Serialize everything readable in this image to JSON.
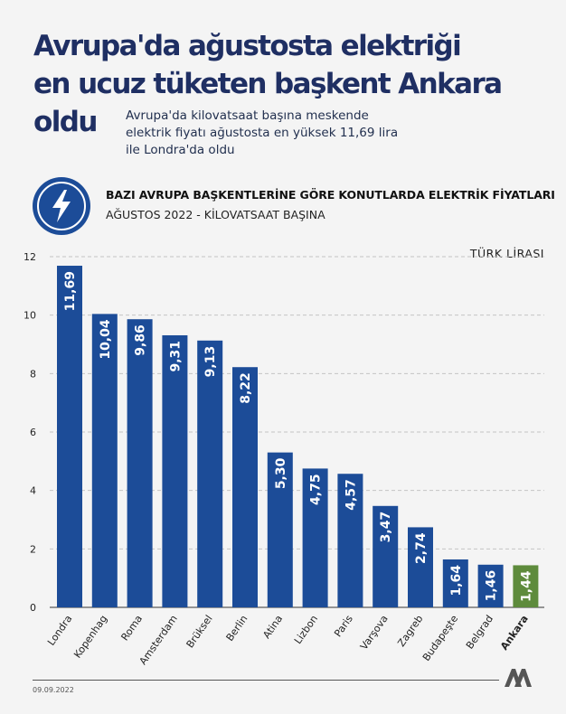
{
  "header": {
    "title_line1": "Avrupa'da ağustosta elektriği",
    "title_line2": "en ucuz tüketen başkent Ankara",
    "title_line3": "oldu",
    "subtitle_line1": "Avrupa'da kilovatsaat başına meskende",
    "subtitle_line2": "elektrik fiyatı ağustosta en yüksek 11,69 lira",
    "subtitle_line3": "ile Londra'da oldu"
  },
  "chart_heading": {
    "icon": "lightning-bolt-icon",
    "title": "BAZI AVRUPA BAŞKENTLERİNE GÖRE KONUTLARDA ELEKTRİK FİYATLARI",
    "subtitle": "AĞUSTOS 2022 - KİLOVATSAAT BAŞINA"
  },
  "chart_data": {
    "type": "bar",
    "unit_label": "TÜRK LİRASI",
    "categories": [
      "Londra",
      "Kopenhag",
      "Roma",
      "Amsterdam",
      "Brüksel",
      "Berlin",
      "Atina",
      "Lizbon",
      "Paris",
      "Varşova",
      "Zagreb",
      "Budapeşte",
      "Belgrad",
      "Ankara"
    ],
    "values": [
      11.69,
      10.04,
      9.86,
      9.31,
      9.13,
      8.22,
      5.3,
      4.75,
      4.57,
      3.47,
      2.74,
      1.64,
      1.46,
      1.44
    ],
    "value_labels": [
      "11,69",
      "10,04",
      "9,86",
      "9,31",
      "9,13",
      "8,22",
      "5,30",
      "4,75",
      "4,57",
      "3,47",
      "2,74",
      "1,64",
      "1,46",
      "1,44"
    ],
    "highlight_category": "Ankara",
    "ylim": [
      0,
      12
    ],
    "yticks": [
      0,
      2,
      4,
      6,
      8,
      10,
      12
    ],
    "grid": "dashed horizontal",
    "colors": {
      "bar": "#1c4c98",
      "highlight": "#5e8b3c"
    }
  },
  "footer": {
    "date": "09.09.2022",
    "logo": "aa-agency-logo"
  }
}
